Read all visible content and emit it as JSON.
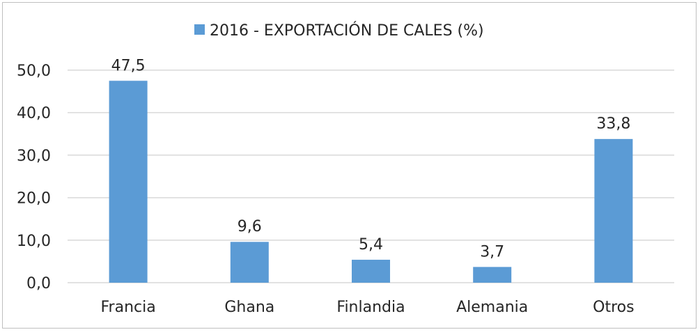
{
  "chart_data": {
    "type": "bar",
    "categories": [
      "Francia",
      "Ghana",
      "Finlandia",
      "Alemania",
      "Otros"
    ],
    "series": [
      {
        "name": "2016 - EXPORTACIÓN DE CALES (%)",
        "values": [
          47.5,
          9.6,
          5.4,
          3.7,
          33.8
        ],
        "value_labels": [
          "47,5",
          "9,6",
          "5,4",
          "3,7",
          "33,8"
        ],
        "color": "#5b9bd5"
      }
    ],
    "ylim": [
      0,
      50
    ],
    "yticks": [
      0,
      10,
      20,
      30,
      40,
      50
    ],
    "ytick_labels": [
      "0,0",
      "10,0",
      "20,0",
      "30,0",
      "40,0",
      "50,0"
    ],
    "grid": true,
    "gridline_color": "#d9d9d9",
    "legend_position": "top"
  }
}
